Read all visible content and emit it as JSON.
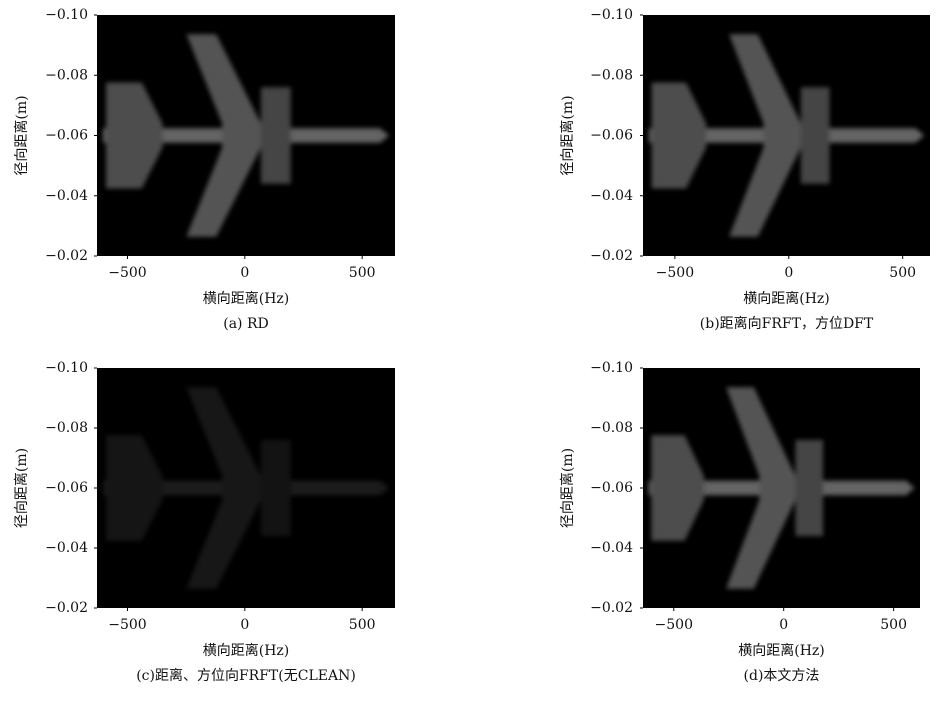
{
  "chart_data": [
    {
      "type": "image",
      "caption": "(a) RD",
      "xlabel": "横向距离(Hz)",
      "ylabel": "径向距离(m)",
      "xlim": [
        -630,
        640
      ],
      "ylim": [
        -0.1,
        -0.02
      ],
      "y_inverted": true,
      "xticks": [
        {
          "value": -500,
          "label": "−500"
        },
        0,
        500
      ],
      "yticks": [
        {
          "value": -0.1,
          "label": "−0.10"
        },
        {
          "value": -0.08,
          "label": "−0.08"
        },
        {
          "value": -0.06,
          "label": "−0.06"
        },
        {
          "value": -0.04,
          "label": "−0.04"
        },
        {
          "value": -0.02,
          "label": "−0.02"
        }
      ]
    },
    {
      "type": "image",
      "caption": "(b)距离向FRFT，方位DFT",
      "xlabel": "横向距离(Hz)",
      "ylabel": "径向距离(m)",
      "xlim": [
        -640,
        620
      ],
      "ylim": [
        -0.1,
        -0.02
      ],
      "y_inverted": true,
      "xticks": [
        {
          "value": -500,
          "label": "−500"
        },
        0,
        500
      ],
      "yticks": [
        {
          "value": -0.1,
          "label": "−0.10"
        },
        {
          "value": -0.08,
          "label": "−0.08"
        },
        {
          "value": -0.06,
          "label": "−0.06"
        },
        {
          "value": -0.04,
          "label": "−0.04"
        },
        {
          "value": -0.02,
          "label": "−0.02"
        }
      ]
    },
    {
      "type": "image",
      "caption": "(c)距离、方位向FRFT(无CLEAN)",
      "xlabel": "横向距离(Hz)",
      "ylabel": "径向距离(m)",
      "xlim": [
        -630,
        640
      ],
      "ylim": [
        -0.1,
        -0.02
      ],
      "y_inverted": true,
      "xticks": [
        {
          "value": -500,
          "label": "−500"
        },
        0,
        500
      ],
      "yticks": [
        {
          "value": -0.1,
          "label": "−0.10"
        },
        {
          "value": -0.08,
          "label": "−0.08"
        },
        {
          "value": -0.06,
          "label": "−0.06"
        },
        {
          "value": -0.04,
          "label": "−0.04"
        },
        {
          "value": -0.02,
          "label": "−0.02"
        }
      ]
    },
    {
      "type": "image",
      "caption": "(d)本文方法",
      "xlabel": "横向距离(Hz)",
      "ylabel": "径向距离(m)",
      "xlim": [
        -640,
        620
      ],
      "ylim": [
        -0.1,
        -0.02
      ],
      "y_inverted": true,
      "xticks": [
        {
          "value": -500,
          "label": "−500"
        },
        0,
        500
      ],
      "yticks": [
        {
          "value": -0.1,
          "label": "−0.10"
        },
        {
          "value": -0.08,
          "label": "−0.08"
        },
        {
          "value": -0.06,
          "label": "−0.06"
        },
        {
          "value": -0.04,
          "label": "−0.04"
        },
        {
          "value": -0.02,
          "label": "−0.02"
        }
      ]
    }
  ]
}
